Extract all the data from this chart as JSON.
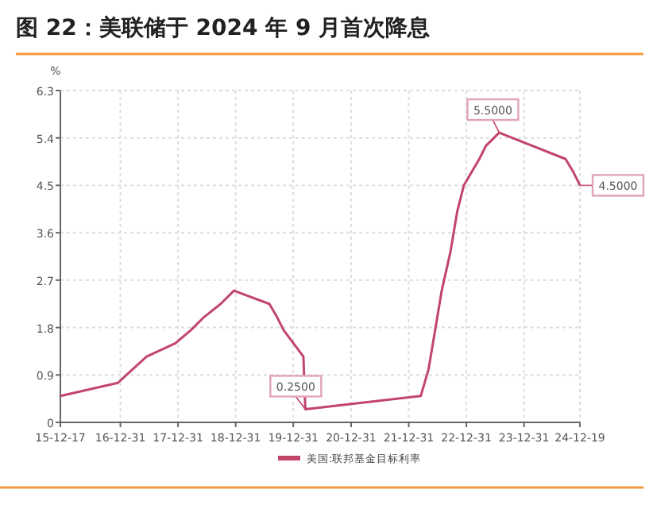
{
  "chart_data": {
    "type": "line",
    "title": "图 22：美联储于 2024 年 9 月首次降息",
    "ylabel": "%",
    "series": [
      {
        "name": "美国:联邦基金目标利率",
        "color": "#c2456a",
        "x": [
          "2015-12-17",
          "2016-12-15",
          "2017-03-16",
          "2017-06-15",
          "2017-12-14",
          "2018-03-22",
          "2018-06-14",
          "2018-09-27",
          "2018-12-20",
          "2019-08-01",
          "2019-09-19",
          "2019-10-31",
          "2020-03-04",
          "2020-03-16",
          "2022-03-17",
          "2022-05-05",
          "2022-06-16",
          "2022-07-28",
          "2022-09-22",
          "2022-11-03",
          "2022-12-15",
          "2023-02-02",
          "2023-03-23",
          "2023-05-04",
          "2023-07-27",
          "2024-09-19",
          "2024-11-08",
          "2024-12-19"
        ],
        "values": [
          0.5,
          0.75,
          1.0,
          1.25,
          1.5,
          1.75,
          2.0,
          2.25,
          2.5,
          2.25,
          2.0,
          1.75,
          1.25,
          0.25,
          0.5,
          1.0,
          1.75,
          2.5,
          3.25,
          4.0,
          4.5,
          4.75,
          5.0,
          5.25,
          5.5,
          5.0,
          4.75,
          4.5
        ]
      }
    ],
    "xlim": [
      "2015-12-17",
      "2024-12-19"
    ],
    "xticks": [
      {
        "value": "2015-12-17",
        "label": "15-12-17"
      },
      {
        "value": "2016-12-31",
        "label": "16-12-31"
      },
      {
        "value": "2017-12-31",
        "label": "17-12-31"
      },
      {
        "value": "2018-12-31",
        "label": "18-12-31"
      },
      {
        "value": "2019-12-31",
        "label": "19-12-31"
      },
      {
        "value": "2020-12-31",
        "label": "20-12-31"
      },
      {
        "value": "2021-12-31",
        "label": "21-12-31"
      },
      {
        "value": "2022-12-31",
        "label": "22-12-31"
      },
      {
        "value": "2023-12-31",
        "label": "23-12-31"
      },
      {
        "value": "2024-12-19",
        "label": "24-12-19"
      }
    ],
    "ylim": [
      0,
      6.3
    ],
    "yticks": [
      0,
      0.9,
      1.8,
      2.7,
      3.6,
      4.5,
      5.4,
      6.3
    ],
    "annotations": [
      {
        "text": "0.2500",
        "x": "2020-03-16",
        "y": 0.25
      },
      {
        "text": "5.5000",
        "x": "2023-07-27",
        "y": 5.5
      },
      {
        "text": "4.5000",
        "x": "2024-12-19",
        "y": 4.5
      }
    ],
    "grid": true,
    "legend": "bottom"
  }
}
